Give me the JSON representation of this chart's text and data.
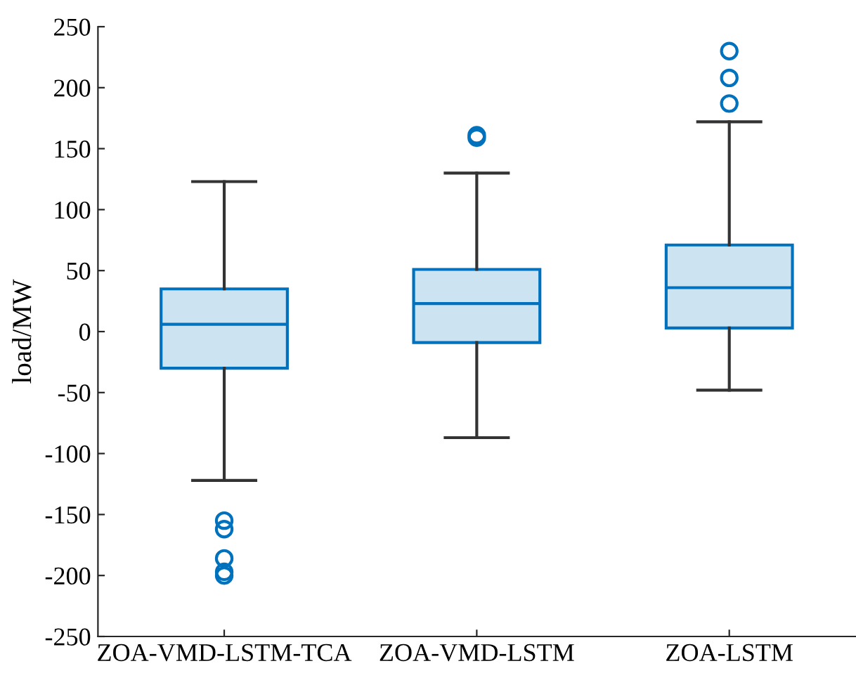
{
  "chart_data": {
    "type": "box",
    "ylabel": "load/MW",
    "categories": [
      "ZOA-VMD-LSTM-TCA",
      "ZOA-VMD-LSTM",
      "ZOA-LSTM"
    ],
    "series": [
      {
        "color": "#0072bd",
        "boxes": [
          {
            "low": -122,
            "q1": -30,
            "median": 6,
            "q3": 35,
            "high": 123,
            "outliers": [
              -155,
              -162,
              -186,
              -197,
              -200
            ]
          },
          {
            "low": -87,
            "q1": -9,
            "median": 23,
            "q3": 51,
            "high": 130,
            "outliers": [
              159,
              161
            ]
          },
          {
            "low": -48,
            "q1": 3,
            "median": 36,
            "q3": 71,
            "high": 172,
            "outliers": [
              187,
              208,
              230
            ]
          }
        ]
      }
    ],
    "ylim": [
      -250,
      250
    ],
    "yticks": [
      -250,
      -200,
      -150,
      -100,
      -50,
      0,
      50,
      100,
      150,
      200,
      250
    ],
    "grid": false,
    "legend": false
  }
}
